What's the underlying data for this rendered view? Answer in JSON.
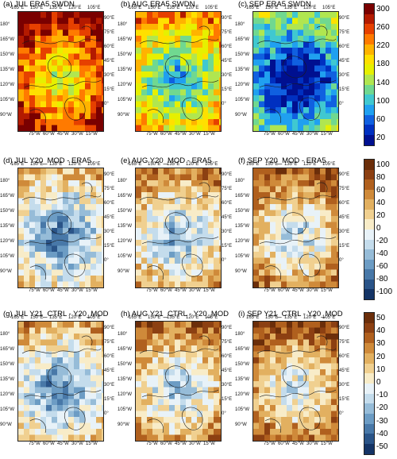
{
  "rows": [
    {
      "panels": [
        {
          "title": "(a) JUL ERA5 SWDN",
          "scheme": "abs",
          "level": 0.72
        },
        {
          "title": "(b) AUG ERA5 SWDN",
          "scheme": "abs",
          "level": 0.48
        },
        {
          "title": "(c) SEP ERA5 SWDN",
          "scheme": "abs",
          "level": 0.2
        }
      ],
      "colorbar": {
        "labels": [
          "300",
          "260",
          "220",
          "180",
          "140",
          "100",
          "60",
          "20"
        ],
        "colors": [
          "#7a0000",
          "#b31a00",
          "#e64000",
          "#ff7a00",
          "#ffb300",
          "#ffe000",
          "#e6f000",
          "#b0e650",
          "#70d890",
          "#40c8d0",
          "#20a0f0",
          "#1060e0",
          "#0030c0",
          "#001090"
        ]
      }
    },
    {
      "panels": [
        {
          "title": "(d) JUL Y20_MOD - ERA5",
          "scheme": "diff",
          "level": 0.4
        },
        {
          "title": "(e) AUG Y20_MOD - ERA5",
          "scheme": "diff",
          "level": 0.5
        },
        {
          "title": "(f) SEP Y20_MOD - ERA5",
          "scheme": "diff",
          "level": 0.58
        }
      ],
      "colorbar": {
        "labels": [
          "100",
          "80",
          "60",
          "40",
          "20",
          "0",
          "-20",
          "-40",
          "-60",
          "-80",
          "-100"
        ],
        "colors": [
          "#6b2e0a",
          "#8c4012",
          "#b0601e",
          "#cf8a3a",
          "#e2b060",
          "#f0d090",
          "#f8ecc8",
          "#e8f2f8",
          "#c4dcec",
          "#96bcd8",
          "#6c9cc4",
          "#4878a8",
          "#2a5488",
          "#143466"
        ]
      }
    },
    {
      "panels": [
        {
          "title": "(g) JUL Y21_CTRL - Y20_MOD",
          "scheme": "diff",
          "level": 0.42
        },
        {
          "title": "(h) AUG Y21_CTRL - Y20_MOD",
          "scheme": "diff",
          "level": 0.55
        },
        {
          "title": "(i) SEP Y21_CTRL - Y20_MOD",
          "scheme": "diff",
          "level": 0.62
        }
      ],
      "colorbar": {
        "labels": [
          "50",
          "40",
          "30",
          "20",
          "10",
          "0",
          "-10",
          "-20",
          "-30",
          "-40",
          "-50"
        ],
        "colors": [
          "#6b2e0a",
          "#8c4012",
          "#b0601e",
          "#cf8a3a",
          "#e2b060",
          "#f0d090",
          "#f8ecc8",
          "#e8f2f8",
          "#c4dcec",
          "#96bcd8",
          "#6c9cc4",
          "#4878a8",
          "#2a5488",
          "#143466"
        ]
      }
    }
  ],
  "ticks": {
    "top": [
      "165°E",
      "150°E",
      "135°E",
      "120°E",
      "105°E"
    ],
    "bottom": [
      "75°W",
      "60°W",
      "45°W",
      "30°W",
      "15°W"
    ],
    "left": [
      "180°",
      "165°W",
      "150°W",
      "135°W",
      "120°W",
      "105°W",
      "90°W"
    ],
    "right": [
      "90°E",
      "75°E",
      "60°E",
      "45°E",
      "30°E",
      "15°E",
      "0°"
    ]
  }
}
